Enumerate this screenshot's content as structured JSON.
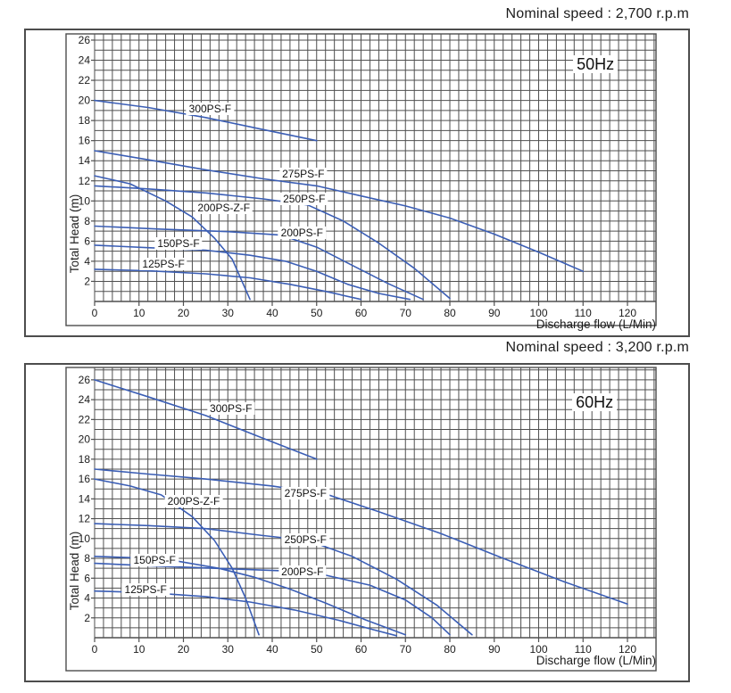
{
  "style": {
    "background": "#ffffff",
    "curve_color": "#3b5eb5",
    "grid_color": "#4f4f4f",
    "frame_color": "#4d4d4d",
    "text_color": "#1c1c1c"
  },
  "chart_data": [
    {
      "type": "line",
      "title": "Nominal speed : 2,700 r.p.m",
      "freq_label": "50Hz",
      "freq_label_pos": [
        112.8,
        23.6
      ],
      "xlabel": "Discharge flow (L/Min)",
      "ylabel": "Total Head (m)",
      "x_ticks": [
        0,
        10,
        20,
        30,
        40,
        50,
        60,
        70,
        80,
        90,
        100,
        110,
        120
      ],
      "y_ticks": [
        2,
        4,
        6,
        8,
        10,
        12,
        14,
        16,
        18,
        20,
        22,
        24,
        26
      ],
      "xlim": [
        0,
        126.5
      ],
      "ylim": [
        0,
        26.5
      ],
      "grid": "on",
      "series": [
        {
          "name": "300PS-F",
          "label_pos": [
            26,
            19.2
          ],
          "points": [
            [
              0,
              20
            ],
            [
              12,
              19.3
            ],
            [
              25,
              18.3
            ],
            [
              38,
              17.1
            ],
            [
              50,
              16.0
            ]
          ]
        },
        {
          "name": "275PS-F",
          "label_pos": [
            47,
            12.7
          ],
          "points": [
            [
              0,
              15
            ],
            [
              12,
              14.1
            ],
            [
              25,
              13.1
            ],
            [
              38,
              12.2
            ],
            [
              50,
              11.5
            ],
            [
              60,
              10.5
            ],
            [
              70,
              9.5
            ],
            [
              80,
              8.3
            ],
            [
              90,
              6.7
            ],
            [
              100,
              4.9
            ],
            [
              110,
              3.0
            ]
          ]
        },
        {
          "name": "250PS-F",
          "label_pos": [
            47.2,
            10.2
          ],
          "points": [
            [
              0,
              11.5
            ],
            [
              12,
              11.2
            ],
            [
              25,
              10.8
            ],
            [
              38,
              10.2
            ],
            [
              48,
              9.6
            ],
            [
              56,
              8.0
            ],
            [
              64,
              5.8
            ],
            [
              72,
              3.3
            ],
            [
              80,
              0.3
            ]
          ]
        },
        {
          "name": "200PS-Z-F",
          "label_pos": [
            29.1,
            9.3
          ],
          "points": [
            [
              0,
              12.5
            ],
            [
              8,
              11.7
            ],
            [
              16,
              10.0
            ],
            [
              22,
              8.4
            ],
            [
              27,
              6.3
            ],
            [
              31,
              4.2
            ],
            [
              35,
              0.2
            ]
          ]
        },
        {
          "name": "200PS-F",
          "label_pos": [
            46.7,
            6.8
          ],
          "points": [
            [
              0,
              7.5
            ],
            [
              15,
              7.2
            ],
            [
              30,
              6.95
            ],
            [
              42,
              6.6
            ],
            [
              50,
              5.4
            ],
            [
              58,
              3.6
            ],
            [
              66,
              1.8
            ],
            [
              74,
              0.2
            ]
          ]
        },
        {
          "name": "150PS-F",
          "label_pos": [
            18.9,
            5.8
          ],
          "points": [
            [
              0,
              5.6
            ],
            [
              12,
              5.35
            ],
            [
              25,
              5.1
            ],
            [
              35,
              4.6
            ],
            [
              43,
              4.0
            ],
            [
              50,
              3.0
            ],
            [
              57,
              1.7
            ],
            [
              64,
              0.8
            ],
            [
              71,
              0.2
            ]
          ]
        },
        {
          "name": "125PS-F",
          "label_pos": [
            15.5,
            3.7
          ],
          "points": [
            [
              0,
              3.2
            ],
            [
              12,
              3.05
            ],
            [
              25,
              2.75
            ],
            [
              35,
              2.35
            ],
            [
              44,
              1.7
            ],
            [
              52,
              1.0
            ],
            [
              60,
              0.2
            ]
          ]
        }
      ]
    },
    {
      "type": "line",
      "title": "Nominal speed : 3,200 r.p.m",
      "freq_label": "60Hz",
      "freq_label_pos": [
        112.6,
        23.7
      ],
      "xlabel": "Discharge flow (L/Min)",
      "ylabel": "Total Head (m)",
      "x_ticks": [
        0,
        10,
        20,
        30,
        40,
        50,
        60,
        70,
        80,
        90,
        100,
        110,
        120
      ],
      "y_ticks": [
        2,
        4,
        6,
        8,
        10,
        12,
        14,
        16,
        18,
        20,
        22,
        24,
        26
      ],
      "xlim": [
        0,
        126.5
      ],
      "ylim": [
        0,
        27.2
      ],
      "grid": "on",
      "series": [
        {
          "name": "300PS-F",
          "label_pos": [
            30.7,
            23.1
          ],
          "points": [
            [
              0,
              26
            ],
            [
              12,
              24.3
            ],
            [
              25,
              22.4
            ],
            [
              38,
              20.1
            ],
            [
              50,
              18.0
            ]
          ]
        },
        {
          "name": "275PS-F",
          "label_pos": [
            47.5,
            14.6
          ],
          "points": [
            [
              0,
              17
            ],
            [
              12,
              16.5
            ],
            [
              25,
              16.0
            ],
            [
              40,
              15.3
            ],
            [
              52,
              14.5
            ],
            [
              64,
              12.7
            ],
            [
              78,
              10.5
            ],
            [
              92,
              8.0
            ],
            [
              106,
              5.6
            ],
            [
              120,
              3.4
            ]
          ]
        },
        {
          "name": "200PS-Z-F",
          "label_pos": [
            22.3,
            13.8
          ],
          "points": [
            [
              0,
              16
            ],
            [
              8,
              15.3
            ],
            [
              15,
              14.4
            ],
            [
              22,
              12.2
            ],
            [
              27,
              9.8
            ],
            [
              31,
              7.0
            ],
            [
              34,
              4.0
            ],
            [
              37,
              0.3
            ]
          ]
        },
        {
          "name": "250PS-F",
          "label_pos": [
            47.5,
            9.9
          ],
          "points": [
            [
              0,
              11.5
            ],
            [
              12,
              11.3
            ],
            [
              25,
              11.0
            ],
            [
              38,
              10.3
            ],
            [
              48,
              9.8
            ],
            [
              58,
              8.2
            ],
            [
              68,
              5.9
            ],
            [
              77,
              3.3
            ],
            [
              85,
              0.3
            ]
          ]
        },
        {
          "name": "200PS-F",
          "label_pos": [
            46.8,
            6.65
          ],
          "points": [
            [
              0,
              7.5
            ],
            [
              15,
              7.2
            ],
            [
              30,
              6.95
            ],
            [
              42,
              6.75
            ],
            [
              52,
              6.3
            ],
            [
              62,
              5.3
            ],
            [
              70,
              3.8
            ],
            [
              76,
              2.0
            ],
            [
              80,
              0.3
            ]
          ]
        },
        {
          "name": "150PS-F",
          "label_pos": [
            13.5,
            7.8
          ],
          "points": [
            [
              0,
              8.2
            ],
            [
              10,
              8.05
            ],
            [
              19,
              7.7
            ],
            [
              28,
              7.0
            ],
            [
              36,
              6.1
            ],
            [
              44,
              4.9
            ],
            [
              52,
              3.5
            ],
            [
              61,
              1.8
            ],
            [
              70,
              0.3
            ]
          ]
        },
        {
          "name": "125PS-F",
          "label_pos": [
            11.5,
            4.85
          ],
          "points": [
            [
              0,
              4.7
            ],
            [
              12,
              4.55
            ],
            [
              25,
              4.15
            ],
            [
              35,
              3.6
            ],
            [
              45,
              2.8
            ],
            [
              55,
              1.75
            ],
            [
              62,
              0.9
            ],
            [
              68,
              0.2
            ]
          ]
        }
      ]
    }
  ]
}
